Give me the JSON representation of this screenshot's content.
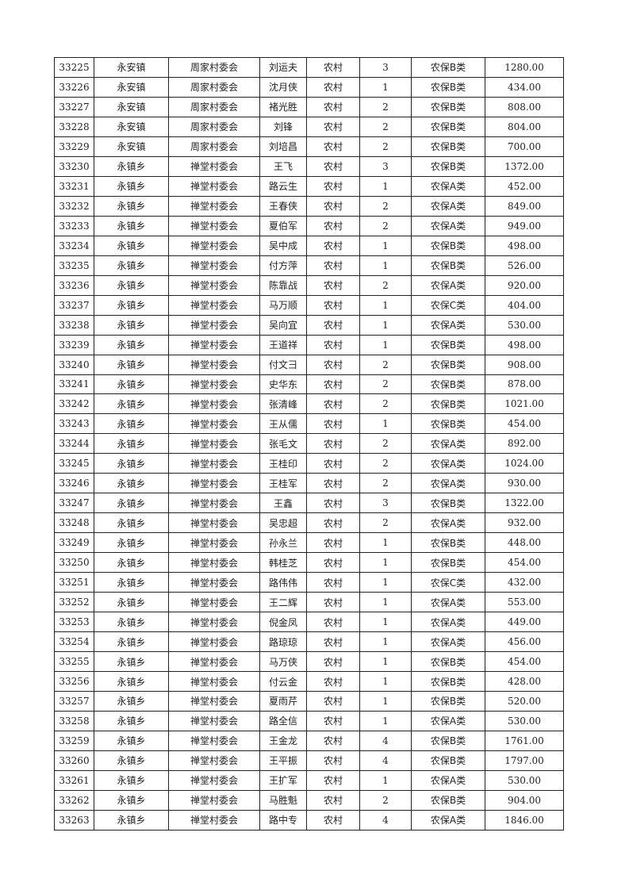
{
  "rows": [
    [
      "33225",
      "永安镇",
      "周家村委会",
      "刘运夫",
      "农村",
      "3",
      "农保B类",
      "1280.00"
    ],
    [
      "33226",
      "永安镇",
      "周家村委会",
      "沈月侠",
      "农村",
      "1",
      "农保B类",
      "434.00"
    ],
    [
      "33227",
      "永安镇",
      "周家村委会",
      "褚光胜",
      "农村",
      "2",
      "农保B类",
      "808.00"
    ],
    [
      "33228",
      "永安镇",
      "周家村委会",
      "刘锋",
      "农村",
      "2",
      "农保B类",
      "804.00"
    ],
    [
      "33229",
      "永安镇",
      "周家村委会",
      "刘培昌",
      "农村",
      "2",
      "农保B类",
      "700.00"
    ],
    [
      "33230",
      "永镇乡",
      "禅堂村委会",
      "王飞",
      "农村",
      "3",
      "农保B类",
      "1372.00"
    ],
    [
      "33231",
      "永镇乡",
      "禅堂村委会",
      "路云生",
      "农村",
      "1",
      "农保A类",
      "452.00"
    ],
    [
      "33232",
      "永镇乡",
      "禅堂村委会",
      "王春侠",
      "农村",
      "2",
      "农保A类",
      "849.00"
    ],
    [
      "33233",
      "永镇乡",
      "禅堂村委会",
      "夏伯军",
      "农村",
      "2",
      "农保A类",
      "949.00"
    ],
    [
      "33234",
      "永镇乡",
      "禅堂村委会",
      "吴中成",
      "农村",
      "1",
      "农保B类",
      "498.00"
    ],
    [
      "33235",
      "永镇乡",
      "禅堂村委会",
      "付方萍",
      "农村",
      "1",
      "农保B类",
      "526.00"
    ],
    [
      "33236",
      "永镇乡",
      "禅堂村委会",
      "陈靠战",
      "农村",
      "2",
      "农保A类",
      "920.00"
    ],
    [
      "33237",
      "永镇乡",
      "禅堂村委会",
      "马万顺",
      "农村",
      "1",
      "农保C类",
      "404.00"
    ],
    [
      "33238",
      "永镇乡",
      "禅堂村委会",
      "吴向宜",
      "农村",
      "1",
      "农保A类",
      "530.00"
    ],
    [
      "33239",
      "永镇乡",
      "禅堂村委会",
      "王道祥",
      "农村",
      "1",
      "农保B类",
      "498.00"
    ],
    [
      "33240",
      "永镇乡",
      "禅堂村委会",
      "付文彐",
      "农村",
      "2",
      "农保B类",
      "908.00"
    ],
    [
      "33241",
      "永镇乡",
      "禅堂村委会",
      "史华东",
      "农村",
      "2",
      "农保B类",
      "878.00"
    ],
    [
      "33242",
      "永镇乡",
      "禅堂村委会",
      "张清峰",
      "农村",
      "2",
      "农保B类",
      "1021.00"
    ],
    [
      "33243",
      "永镇乡",
      "禅堂村委会",
      "王从儒",
      "农村",
      "1",
      "农保B类",
      "454.00"
    ],
    [
      "33244",
      "永镇乡",
      "禅堂村委会",
      "张毛文",
      "农村",
      "2",
      "农保A类",
      "892.00"
    ],
    [
      "33245",
      "永镇乡",
      "禅堂村委会",
      "王桂印",
      "农村",
      "2",
      "农保A类",
      "1024.00"
    ],
    [
      "33246",
      "永镇乡",
      "禅堂村委会",
      "王桂军",
      "农村",
      "2",
      "农保A类",
      "930.00"
    ],
    [
      "33247",
      "永镇乡",
      "禅堂村委会",
      "王鑫",
      "农村",
      "3",
      "农保B类",
      "1322.00"
    ],
    [
      "33248",
      "永镇乡",
      "禅堂村委会",
      "吴忠超",
      "农村",
      "2",
      "农保A类",
      "932.00"
    ],
    [
      "33249",
      "永镇乡",
      "禅堂村委会",
      "孙永兰",
      "农村",
      "1",
      "农保B类",
      "448.00"
    ],
    [
      "33250",
      "永镇乡",
      "禅堂村委会",
      "韩桂芝",
      "农村",
      "1",
      "农保B类",
      "454.00"
    ],
    [
      "33251",
      "永镇乡",
      "禅堂村委会",
      "路伟伟",
      "农村",
      "1",
      "农保C类",
      "432.00"
    ],
    [
      "33252",
      "永镇乡",
      "禅堂村委会",
      "王二辉",
      "农村",
      "1",
      "农保A类",
      "553.00"
    ],
    [
      "33253",
      "永镇乡",
      "禅堂村委会",
      "倪金凤",
      "农村",
      "1",
      "农保A类",
      "449.00"
    ],
    [
      "33254",
      "永镇乡",
      "禅堂村委会",
      "路琼琼",
      "农村",
      "1",
      "农保A类",
      "456.00"
    ],
    [
      "33255",
      "永镇乡",
      "禅堂村委会",
      "马万侠",
      "农村",
      "1",
      "农保B类",
      "454.00"
    ],
    [
      "33256",
      "永镇乡",
      "禅堂村委会",
      "付云金",
      "农村",
      "1",
      "农保B类",
      "428.00"
    ],
    [
      "33257",
      "永镇乡",
      "禅堂村委会",
      "夏雨芹",
      "农村",
      "1",
      "农保B类",
      "520.00"
    ],
    [
      "33258",
      "永镇乡",
      "禅堂村委会",
      "路全信",
      "农村",
      "1",
      "农保A类",
      "530.00"
    ],
    [
      "33259",
      "永镇乡",
      "禅堂村委会",
      "王金龙",
      "农村",
      "4",
      "农保B类",
      "1761.00"
    ],
    [
      "33260",
      "永镇乡",
      "禅堂村委会",
      "王平振",
      "农村",
      "4",
      "农保B类",
      "1797.00"
    ],
    [
      "33261",
      "永镇乡",
      "禅堂村委会",
      "王扩军",
      "农村",
      "1",
      "农保A类",
      "530.00"
    ],
    [
      "33262",
      "永镇乡",
      "禅堂村委会",
      "马胜魁",
      "农村",
      "2",
      "农保B类",
      "904.00"
    ],
    [
      "33263",
      "永镇乡",
      "禅堂村委会",
      "路中专",
      "农村",
      "4",
      "农保A类",
      "1846.00"
    ]
  ]
}
